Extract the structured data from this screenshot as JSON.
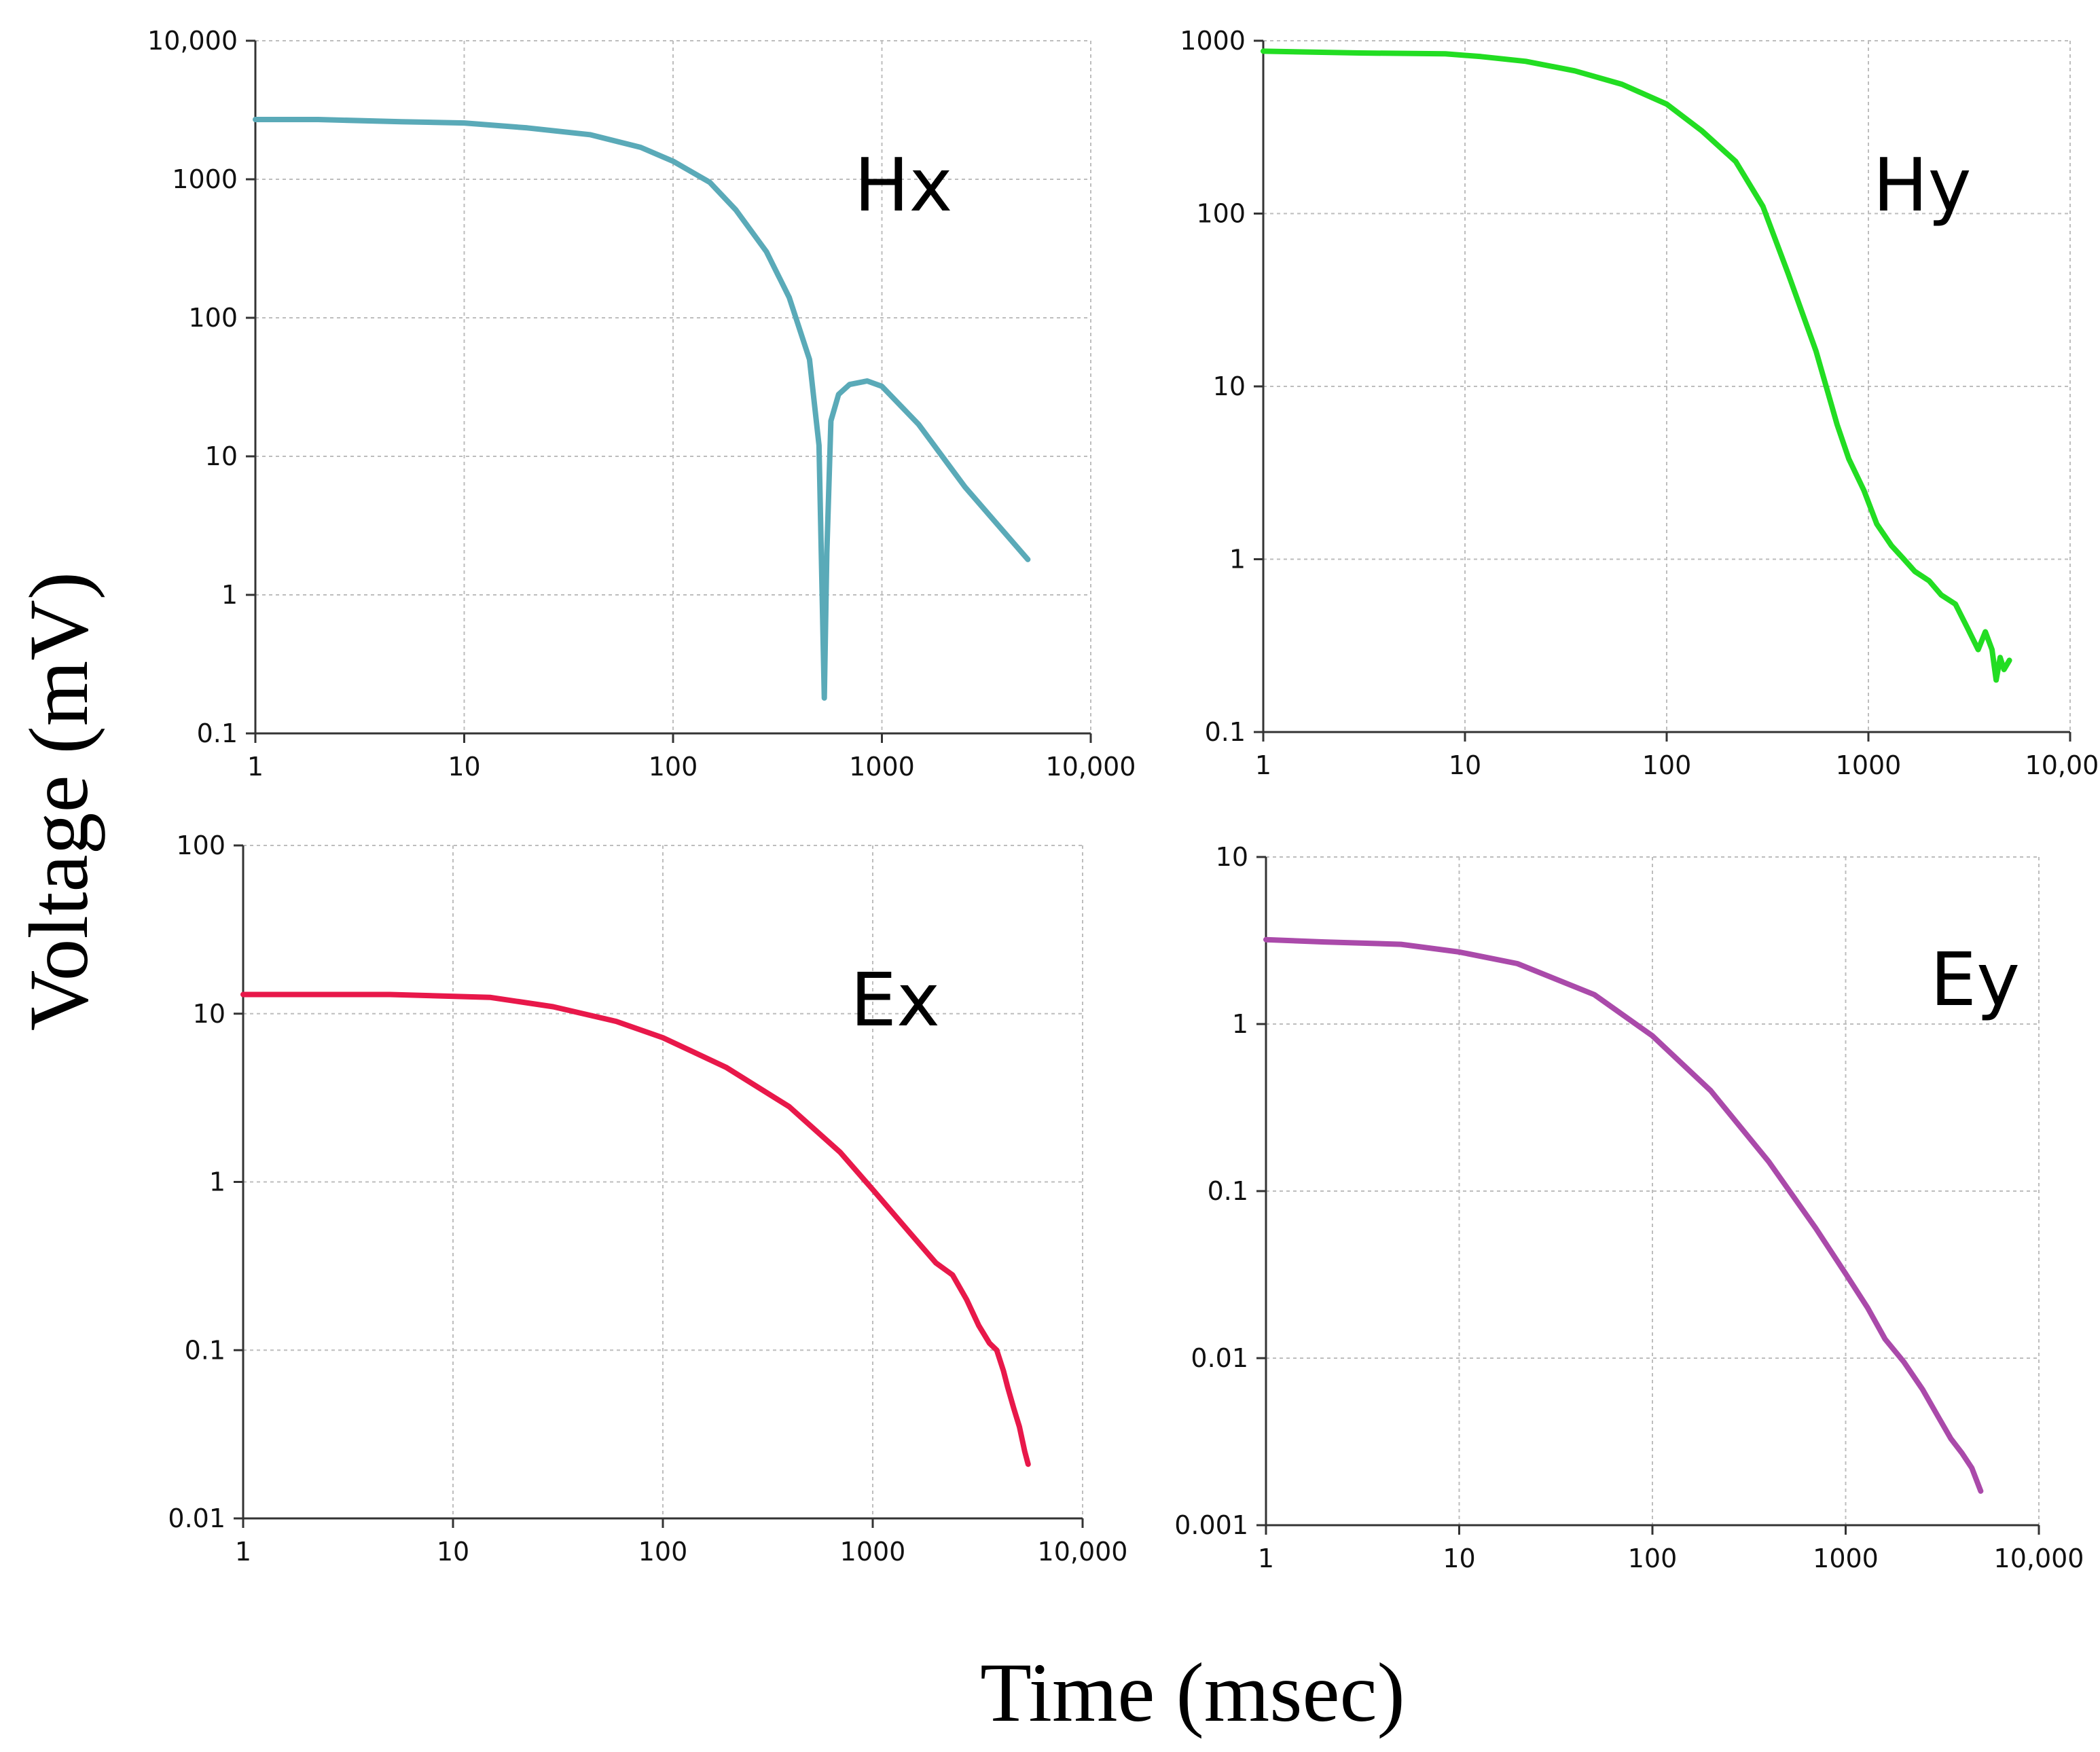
{
  "figure": {
    "x_axis_title": "Time (msec)",
    "y_axis_title": "Voltage (mV)"
  },
  "chart_data": [
    {
      "id": "hx",
      "type": "line",
      "title": "Hx",
      "color": "#5aaab8",
      "xscale": "log",
      "yscale": "log",
      "xlim": [
        1,
        10000
      ],
      "ylim": [
        0.1,
        10000
      ],
      "xticks": [
        "1",
        "10",
        "100",
        "1000",
        "10,000"
      ],
      "yticks": [
        "0.1",
        "1",
        "10",
        "100",
        "1000",
        "10,000"
      ],
      "series": [
        {
          "name": "Hx",
          "x": [
            1,
            2,
            5,
            10,
            20,
            40,
            70,
            100,
            150,
            200,
            280,
            360,
            450,
            500,
            530,
            545,
            570,
            620,
            700,
            850,
            1000,
            1500,
            2500,
            5000
          ],
          "y": [
            2700,
            2700,
            2600,
            2550,
            2350,
            2100,
            1700,
            1350,
            950,
            600,
            300,
            140,
            50,
            12,
            0.18,
            2,
            18,
            28,
            33,
            35,
            32,
            17,
            6,
            1.8
          ]
        }
      ]
    },
    {
      "id": "hy",
      "type": "line",
      "title": "Hy",
      "color": "#22dd22",
      "xscale": "log",
      "yscale": "log",
      "xlim": [
        1,
        10000
      ],
      "ylim": [
        0.1,
        1000
      ],
      "xticks": [
        "1",
        "10",
        "100",
        "1000",
        "10,000"
      ],
      "yticks": [
        "0.1",
        "1",
        "10",
        "100",
        "1000"
      ],
      "series": [
        {
          "name": "Hy",
          "x": [
            1,
            3,
            8,
            12,
            20,
            35,
            60,
            100,
            150,
            220,
            300,
            400,
            550,
            700,
            800,
            950,
            1100,
            1300,
            1500,
            1700,
            2000,
            2300,
            2700,
            3100,
            3500,
            3800,
            4100,
            4300,
            4500,
            4700,
            5000
          ],
          "y": [
            870,
            850,
            840,
            810,
            760,
            670,
            560,
            430,
            300,
            200,
            110,
            45,
            16,
            6,
            3.8,
            2.5,
            1.6,
            1.2,
            1.0,
            0.85,
            0.75,
            0.62,
            0.55,
            0.4,
            0.3,
            0.38,
            0.3,
            0.2,
            0.27,
            0.23,
            0.26
          ]
        }
      ]
    },
    {
      "id": "ex",
      "type": "line",
      "title": "Ex",
      "color": "#e8184a",
      "xscale": "log",
      "yscale": "log",
      "xlim": [
        1,
        10000
      ],
      "ylim": [
        0.01,
        100
      ],
      "xticks": [
        "1",
        "10",
        "100",
        "1000",
        "10,000"
      ],
      "yticks": [
        "0.01",
        "0.1",
        "1",
        "10",
        "100"
      ],
      "series": [
        {
          "name": "Ex",
          "x": [
            1,
            5,
            15,
            30,
            60,
            100,
            200,
            400,
            700,
            1000,
            1500,
            2000,
            2400,
            2800,
            3200,
            3600,
            3900,
            4200,
            4400,
            4700,
            5000,
            5300,
            5500
          ],
          "y": [
            13,
            13,
            12.5,
            11,
            9,
            7.2,
            4.8,
            2.8,
            1.5,
            0.9,
            0.5,
            0.33,
            0.28,
            0.2,
            0.14,
            0.11,
            0.1,
            0.075,
            0.06,
            0.045,
            0.035,
            0.025,
            0.021
          ]
        }
      ]
    },
    {
      "id": "ey",
      "type": "line",
      "title": "Ey",
      "color": "#aa4aaa",
      "xscale": "log",
      "yscale": "log",
      "xlim": [
        1,
        10000
      ],
      "ylim": [
        0.001,
        10
      ],
      "xticks": [
        "1",
        "10",
        "100",
        "1000",
        "10,000"
      ],
      "yticks": [
        "0.001",
        "0.01",
        "0.1",
        "1",
        "10"
      ],
      "series": [
        {
          "name": "Ey",
          "x": [
            1,
            2,
            5,
            10,
            20,
            50,
            100,
            200,
            400,
            700,
            1000,
            1300,
            1600,
            2000,
            2500,
            3000,
            3500,
            4000,
            4500,
            5000
          ],
          "y": [
            3.2,
            3.1,
            3.0,
            2.7,
            2.3,
            1.5,
            0.85,
            0.4,
            0.15,
            0.06,
            0.032,
            0.02,
            0.013,
            0.0095,
            0.0065,
            0.0045,
            0.0033,
            0.0027,
            0.0022,
            0.0016
          ]
        }
      ]
    }
  ]
}
